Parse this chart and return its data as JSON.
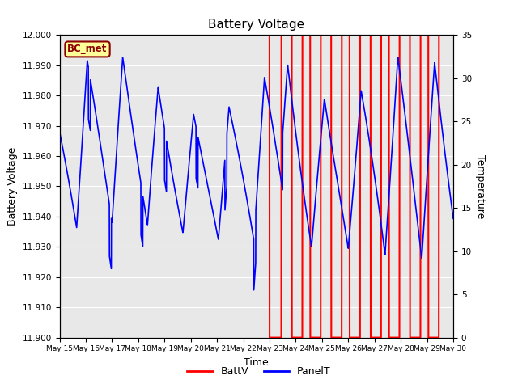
{
  "title": "Battery Voltage",
  "xlabel": "Time",
  "ylabel_left": "Battery Voltage",
  "ylabel_right": "Temperature",
  "ylim_left": [
    11.9,
    12.0
  ],
  "ylim_right": [
    0,
    35
  ],
  "yticks_left": [
    11.9,
    11.91,
    11.92,
    11.93,
    11.94,
    11.95,
    11.96,
    11.97,
    11.98,
    11.99,
    12.0
  ],
  "yticks_right": [
    0,
    5,
    10,
    15,
    20,
    25,
    30,
    35
  ],
  "xtick_labels": [
    "May 15",
    "May 16",
    "May 17",
    "May 18",
    "May 19",
    "May 20",
    "May 21",
    "May 22",
    "May 23",
    "May 24",
    "May 25",
    "May 26",
    "May 27",
    "May 28",
    "May 29",
    "May 30"
  ],
  "annotation_label": "BC_met",
  "bg_color": "#e8e8e8",
  "grid_color": "#ffffff",
  "batt_color": "#ff0000",
  "panel_color": "#0000ff",
  "legend_entries": [
    "BattV",
    "PanelT"
  ],
  "pulse_starts": [
    8.0,
    8.85,
    9.55,
    10.35,
    11.05,
    11.85,
    12.55,
    13.35,
    14.05
  ],
  "pulse_ends": [
    8.45,
    9.25,
    9.95,
    10.75,
    11.45,
    12.25,
    12.95,
    13.75,
    14.45
  ]
}
